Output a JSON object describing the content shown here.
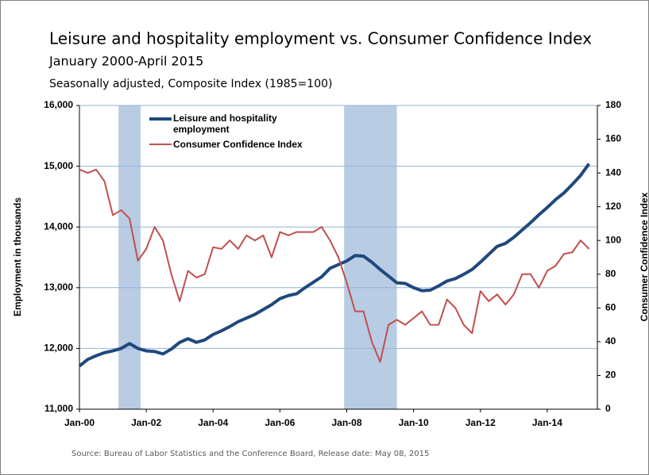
{
  "chart_data": {
    "type": "line",
    "title": "Leisure and hospitality employment vs. Consumer Confidence Index",
    "subtitle": "January 2000-April 2015",
    "note": "Seasonally adjusted, Composite Index (1985=100)",
    "source": "Source: Bureau of Labor Statistics and the Conference Board, Release date: May 08, 2015",
    "ylabel": "Employment in thousands",
    "y2label": "Consumer Confidence Index",
    "x": [
      2000,
      2000.25,
      2000.5,
      2000.75,
      2001,
      2001.25,
      2001.5,
      2001.75,
      2002,
      2002.25,
      2002.5,
      2002.75,
      2003,
      2003.25,
      2003.5,
      2003.75,
      2004,
      2004.25,
      2004.5,
      2004.75,
      2005,
      2005.25,
      2005.5,
      2005.75,
      2006,
      2006.25,
      2006.5,
      2006.75,
      2007,
      2007.25,
      2007.5,
      2007.75,
      2008,
      2008.25,
      2008.5,
      2008.75,
      2009,
      2009.25,
      2009.5,
      2009.75,
      2010,
      2010.25,
      2010.5,
      2010.75,
      2011,
      2011.25,
      2011.5,
      2011.75,
      2012,
      2012.25,
      2012.5,
      2012.75,
      2013,
      2013.25,
      2013.5,
      2013.75,
      2014,
      2014.25,
      2014.5,
      2014.75,
      2015,
      2015.25
    ],
    "xlim": [
      2000,
      2015.5
    ],
    "xticks": [
      {
        "value": 2000,
        "label": "Jan-00"
      },
      {
        "value": 2002,
        "label": "Jan-02"
      },
      {
        "value": 2004,
        "label": "Jan-04"
      },
      {
        "value": 2006,
        "label": "Jan-06"
      },
      {
        "value": 2008,
        "label": "Jan-08"
      },
      {
        "value": 2010,
        "label": "Jan-10"
      },
      {
        "value": 2012,
        "label": "Jan-12"
      },
      {
        "value": 2014,
        "label": "Jan-14"
      }
    ],
    "ylim": [
      11000,
      16000
    ],
    "yticks": [
      {
        "value": 11000,
        "label": "11,000"
      },
      {
        "value": 12000,
        "label": "12,000"
      },
      {
        "value": 13000,
        "label": "13,000"
      },
      {
        "value": 14000,
        "label": "14,000"
      },
      {
        "value": 15000,
        "label": "15,000"
      },
      {
        "value": 16000,
        "label": "16,000"
      }
    ],
    "y2lim": [
      0,
      180
    ],
    "y2ticks": [
      0,
      20,
      40,
      60,
      80,
      100,
      120,
      140,
      160,
      180
    ],
    "grid": true,
    "recessions": [
      [
        2001.17,
        2001.83
      ],
      [
        2007.92,
        2009.5
      ]
    ],
    "recession_color": "#b8cce4",
    "series": [
      {
        "name": "Leisure and hospitality employment",
        "color": "#1f497d",
        "values": [
          11710,
          11820,
          11880,
          11930,
          11960,
          12000,
          12080,
          12000,
          11960,
          11950,
          11910,
          11990,
          12100,
          12160,
          12100,
          12140,
          12230,
          12290,
          12360,
          12440,
          12500,
          12560,
          12640,
          12720,
          12820,
          12870,
          12900,
          13000,
          13090,
          13180,
          13320,
          13380,
          13440,
          13530,
          13520,
          13420,
          13300,
          13190,
          13080,
          13070,
          13000,
          12950,
          12960,
          13030,
          13110,
          13150,
          13220,
          13300,
          13420,
          13550,
          13680,
          13730,
          13830,
          13950,
          14070,
          14200,
          14320,
          14450,
          14560,
          14700,
          14850,
          15040
        ]
      },
      {
        "name": "Consumer Confidence Index",
        "color": "#c0504d",
        "axis": "y2",
        "values": [
          142,
          140,
          142,
          135,
          115,
          118,
          113,
          88,
          95,
          108,
          100,
          80,
          64,
          82,
          78,
          80,
          96,
          95,
          100,
          95,
          103,
          100,
          103,
          90,
          105,
          103,
          105,
          105,
          105,
          108,
          100,
          90,
          75,
          58,
          58,
          40,
          28,
          50,
          53,
          50,
          54,
          58,
          50,
          50,
          65,
          60,
          50,
          45,
          70,
          64,
          68,
          62,
          68,
          80,
          80,
          72,
          82,
          85,
          92,
          93,
          100,
          95
        ]
      }
    ]
  }
}
